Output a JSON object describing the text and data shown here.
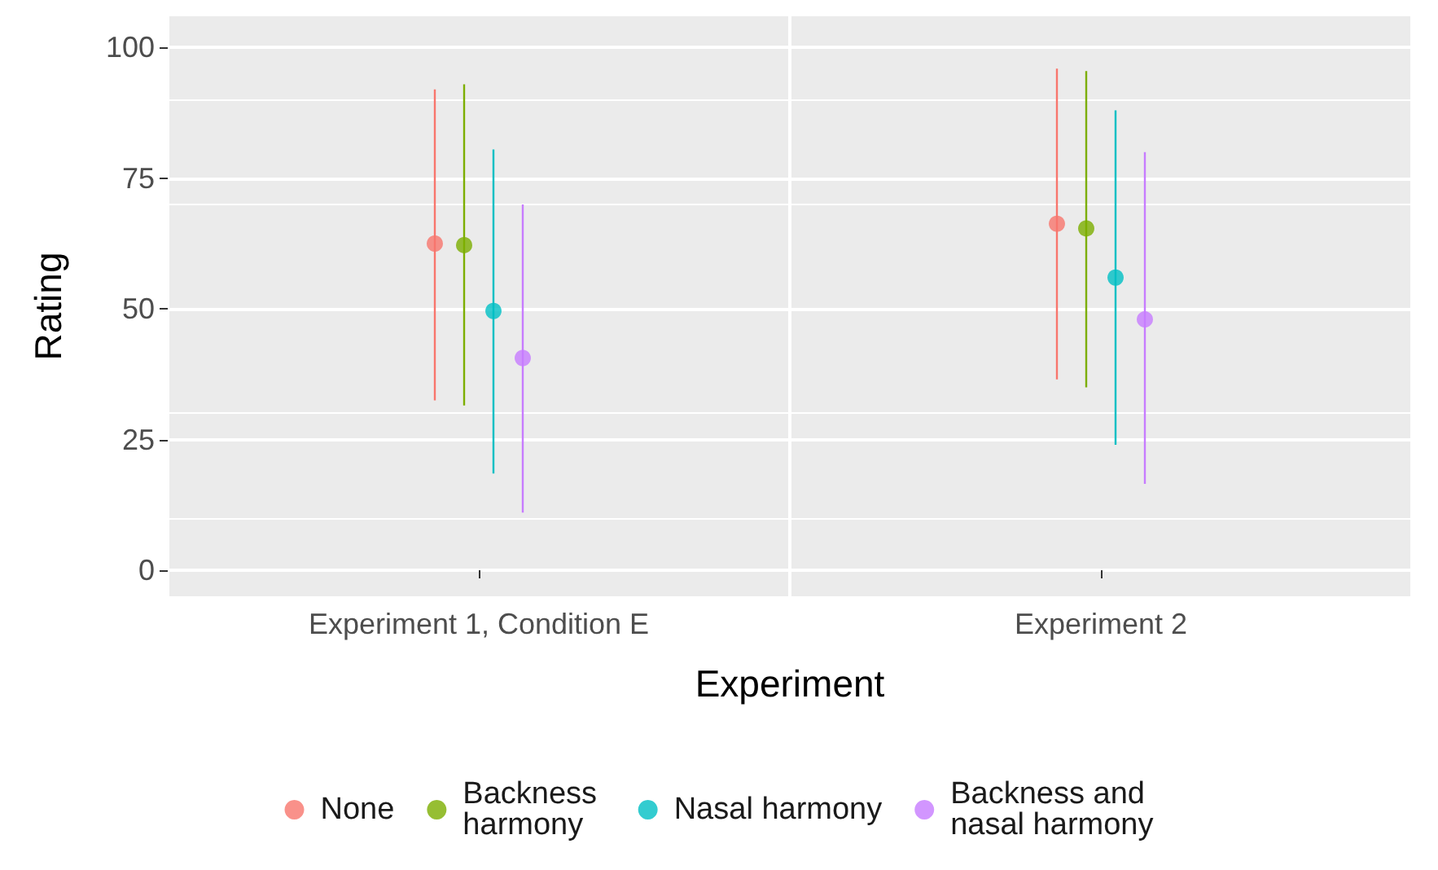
{
  "chart_data": {
    "type": "scatter",
    "xlabel": "Experiment",
    "ylabel": "Rating",
    "categories": [
      "Experiment 1, Condition E",
      "Experiment 2"
    ],
    "series": [
      {
        "name": "None",
        "color": "#f8766d",
        "values": [
          62.5,
          66.3
        ],
        "errors": [
          [
            32.5,
            92
          ],
          [
            36.5,
            96
          ]
        ]
      },
      {
        "name": "Backness harmony",
        "color": "#7cae00",
        "values": [
          62.2,
          65.4
        ],
        "errors": [
          [
            31.5,
            93
          ],
          [
            35,
            95.5
          ]
        ]
      },
      {
        "name": "Nasal harmony",
        "color": "#00bfc4",
        "values": [
          49.6,
          56
        ],
        "errors": [
          [
            18.5,
            80.5
          ],
          [
            24,
            88
          ]
        ]
      },
      {
        "name": "Backness and nasal harmony",
        "color": "#c77cff",
        "values": [
          40.6,
          48
        ],
        "errors": [
          [
            11,
            70
          ],
          [
            16.5,
            80
          ]
        ]
      }
    ],
    "ylim": [
      -5,
      106
    ],
    "yticks": [
      0,
      25,
      50,
      75,
      100
    ],
    "grid": true,
    "legend": "bottom",
    "marker": "circle"
  }
}
